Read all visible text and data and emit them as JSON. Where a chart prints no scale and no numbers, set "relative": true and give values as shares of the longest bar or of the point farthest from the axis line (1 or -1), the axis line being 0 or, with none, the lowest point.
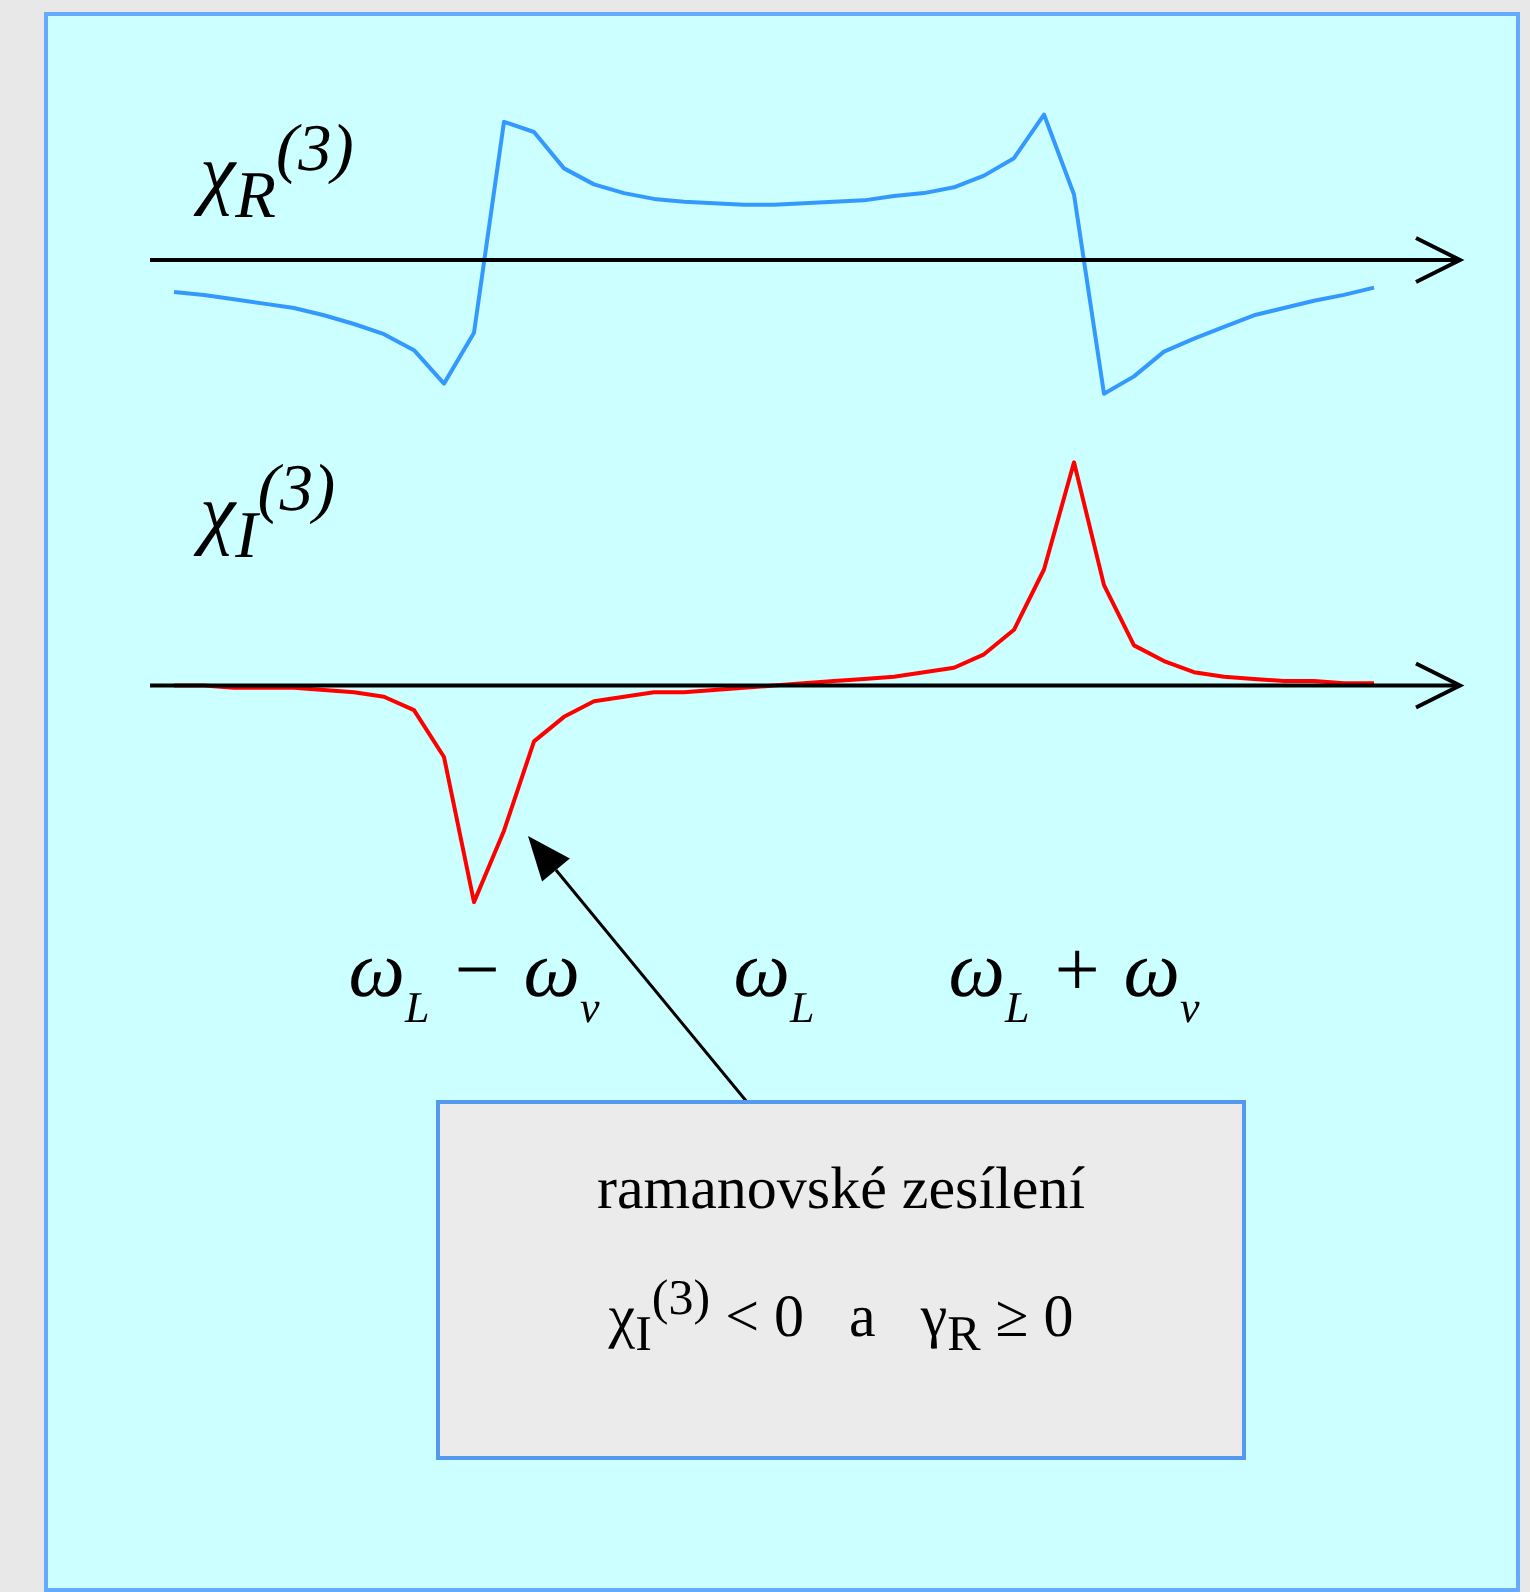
{
  "chart_data": [
    {
      "type": "line",
      "relative": true,
      "ylabel": "χ$_{R}$$^{(3)}$",
      "tick_labels": false,
      "categories": [
        null,
        null,
        null,
        null,
        null,
        null,
        null,
        null,
        null,
        null,
        null,
        null,
        null,
        null,
        null,
        null,
        null,
        null,
        null,
        null,
        null,
        null,
        null,
        null,
        null,
        null,
        null,
        null,
        null,
        null,
        null,
        null,
        null,
        null,
        null,
        null,
        null,
        null,
        null,
        null,
        null
      ],
      "series": [
        {
          "color": "#3399ff",
          "values": [
            -0.22,
            -0.24,
            -0.27,
            -0.3,
            -0.33,
            -0.38,
            -0.44,
            -0.51,
            -0.62,
            -0.85,
            -0.5,
            0.95,
            0.88,
            0.63,
            0.52,
            0.46,
            0.42,
            0.4,
            0.39,
            0.38,
            0.38,
            0.39,
            0.4,
            0.41,
            0.44,
            0.46,
            0.5,
            0.58,
            0.7,
            1,
            0.45,
            -0.92,
            -0.8,
            -0.63,
            -0.54,
            -0.46,
            -0.38,
            -0.33,
            -0.28,
            -0.24,
            -0.19
          ]
        }
      ]
    },
    {
      "type": "line",
      "relative": true,
      "ylabel": "χ$_{I}$$^{(3)}$",
      "tick_labels": "x",
      "categories": [
        null,
        null,
        null,
        null,
        null,
        null,
        null,
        null,
        null,
        null,
        "ω$_{L}$ − ω$_{v}$",
        null,
        null,
        null,
        null,
        null,
        null,
        null,
        null,
        null,
        "ω$_{L}$",
        null,
        null,
        null,
        null,
        null,
        null,
        null,
        null,
        null,
        "ω$_{L}$ + ω$_{v}$",
        null,
        null,
        null,
        null,
        null,
        null,
        null,
        null,
        null,
        null
      ],
      "series": [
        {
          "color": "#ff0000",
          "values": [
            0,
            0,
            -0.01,
            -0.01,
            -0.01,
            -0.02,
            -0.03,
            -0.05,
            -0.11,
            -0.32,
            -0.97,
            -0.65,
            -0.25,
            -0.14,
            -0.07,
            -0.05,
            -0.03,
            -0.03,
            -0.02,
            -0.01,
            0,
            0.01,
            0.02,
            0.03,
            0.04,
            0.06,
            0.08,
            0.14,
            0.25,
            0.52,
            1,
            0.45,
            0.18,
            0.11,
            0.06,
            0.04,
            0.03,
            0.02,
            0.02,
            0.01,
            0.01
          ]
        }
      ],
      "annotations": [
        "ramanovské zesílení",
        "χ$_{I}$$^{(3)}$ < 0   a   γ$_{R}$ ≥ 0"
      ]
    }
  ]
}
